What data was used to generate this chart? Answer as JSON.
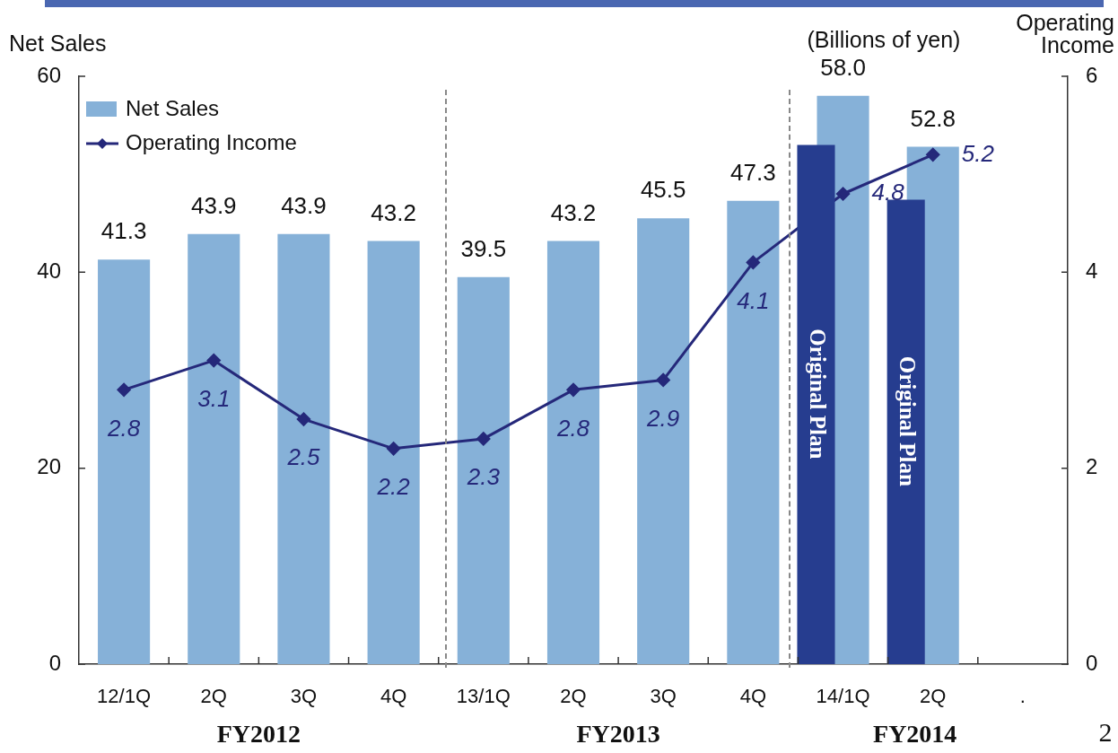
{
  "chart_data": {
    "type": "bar",
    "categories": [
      "12/1Q",
      "2Q",
      "3Q",
      "4Q",
      "13/1Q",
      "2Q",
      "3Q",
      "4Q",
      "14/1Q",
      "2Q",
      "."
    ],
    "series": [
      {
        "name": "Net Sales",
        "color": "#86b1d8",
        "values": [
          41.3,
          43.9,
          43.9,
          43.2,
          39.5,
          43.2,
          45.5,
          47.3,
          58.0,
          52.8,
          null
        ],
        "value_labels": [
          "41.3",
          "43.9",
          "43.9",
          "43.2",
          "39.5",
          "43.2",
          "45.5",
          "47.3",
          "58.0",
          "52.8",
          null
        ]
      },
      {
        "name": "Operating Income",
        "type": "line",
        "axis": "y2",
        "color": "#25287a",
        "values": [
          2.8,
          3.1,
          2.5,
          2.2,
          2.3,
          2.8,
          2.9,
          4.1,
          4.8,
          5.2,
          null
        ],
        "value_labels": [
          "2.8",
          "3.1",
          "2.5",
          "2.2",
          "2.3",
          "2.8",
          "2.9",
          "4.1",
          "4.8",
          "5.2",
          null
        ]
      },
      {
        "name": "Original Plan",
        "color": "#263d8f",
        "values": [
          null,
          null,
          null,
          null,
          null,
          null,
          null,
          null,
          53,
          47.4,
          null
        ]
      }
    ],
    "ylabel": "Net Sales",
    "y2label": "Operating Income",
    "ylim": [
      0,
      60
    ],
    "yticks": [
      0,
      20,
      40,
      60
    ],
    "y2lim": [
      0,
      6
    ],
    "y2ticks": [
      0,
      2,
      4,
      6
    ],
    "legend": "top left",
    "marker": "diamond",
    "annotations": [
      "(Billions of yen)",
      "FY2012",
      "FY2013",
      "FY2014",
      "2"
    ]
  }
}
